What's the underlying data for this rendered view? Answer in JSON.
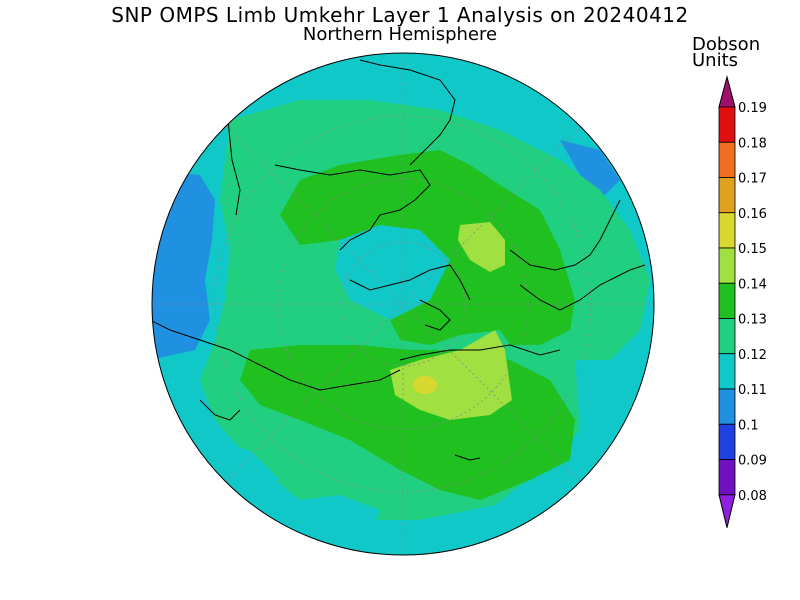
{
  "title": "SNP OMPS Limb Umkehr Layer 1 Analysis on 20240412",
  "subtitle": "Northern Hemisphere",
  "colorbar": {
    "unit_line1": "Dobson",
    "unit_line2": "Units",
    "ticks": [
      "0.19",
      "0.18",
      "0.17",
      "0.16",
      "0.15",
      "0.14",
      "0.13",
      "0.12",
      "0.11",
      "0.1",
      "0.09",
      "0.08"
    ],
    "colors": [
      "#a0106a",
      "#e01010",
      "#f07020",
      "#e0a020",
      "#d8d830",
      "#a0e040",
      "#20c020",
      "#20d080",
      "#10c8c8",
      "#2090e0",
      "#2040e0",
      "#7010c0",
      "#9020e0"
    ]
  },
  "map": {
    "projection": "polar-stereographic",
    "hemisphere": "north",
    "field_colors": {
      "ocean_bg": "#10c8c8",
      "band_012": "#20d080",
      "band_013": "#20c020",
      "band_014": "#a0e040",
      "band_015": "#d8d830",
      "band_010": "#2090e0"
    }
  }
}
